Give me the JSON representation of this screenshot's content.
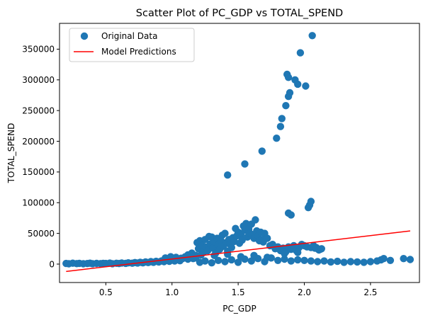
{
  "chart_data": {
    "type": "scatter",
    "title": "Scatter Plot of PC_GDP vs TOTAL_SPEND",
    "xlabel": "PC_GDP",
    "ylabel": "TOTAL_SPEND",
    "xlim": [
      0.15,
      2.87
    ],
    "ylim": [
      -30000,
      392000
    ],
    "xticks": [
      0.5,
      1.0,
      1.5,
      2.0,
      2.5
    ],
    "xtick_labels": [
      "0.5",
      "1.0",
      "1.5",
      "2.0",
      "2.5"
    ],
    "yticks": [
      0,
      50000,
      100000,
      150000,
      200000,
      250000,
      300000,
      350000
    ],
    "ytick_labels": [
      "0",
      "50000",
      "100000",
      "150000",
      "200000",
      "250000",
      "300000",
      "350000"
    ],
    "grid": false,
    "legend_position": "top-left",
    "series": [
      {
        "name": "Original Data",
        "kind": "scatter",
        "color": "#1f77b4",
        "points": [
          [
            0.2,
            1000
          ],
          [
            0.22,
            500
          ],
          [
            0.25,
            1500
          ],
          [
            0.28,
            800
          ],
          [
            0.3,
            1200
          ],
          [
            0.33,
            600
          ],
          [
            0.36,
            900
          ],
          [
            0.38,
            1500
          ],
          [
            0.4,
            700
          ],
          [
            0.43,
            1100
          ],
          [
            0.46,
            800
          ],
          [
            0.48,
            1300
          ],
          [
            0.5,
            1000
          ],
          [
            0.53,
            1600
          ],
          [
            0.55,
            700
          ],
          [
            0.58,
            1400
          ],
          [
            0.6,
            900
          ],
          [
            0.62,
            1800
          ],
          [
            0.65,
            1200
          ],
          [
            0.67,
            2000
          ],
          [
            0.7,
            1500
          ],
          [
            0.72,
            2500
          ],
          [
            0.74,
            1800
          ],
          [
            0.76,
            3000
          ],
          [
            0.78,
            2000
          ],
          [
            0.8,
            3500
          ],
          [
            0.82,
            2500
          ],
          [
            0.84,
            4000
          ],
          [
            0.86,
            3000
          ],
          [
            0.88,
            4500
          ],
          [
            0.9,
            3500
          ],
          [
            0.92,
            5000
          ],
          [
            0.94,
            4000
          ],
          [
            0.96,
            6000
          ],
          [
            0.98,
            4500
          ],
          [
            1.0,
            7000
          ],
          [
            1.02,
            5000
          ],
          [
            1.04,
            8000
          ],
          [
            1.06,
            5500
          ],
          [
            1.08,
            9000
          ],
          [
            0.95,
            10000
          ],
          [
            0.99,
            12000
          ],
          [
            1.03,
            11000
          ],
          [
            1.07,
            9500
          ],
          [
            1.1,
            12000
          ],
          [
            1.12,
            8000
          ],
          [
            1.14,
            13000
          ],
          [
            1.16,
            9000
          ],
          [
            1.18,
            14000
          ],
          [
            1.19,
            35000
          ],
          [
            1.2,
            25000
          ],
          [
            1.21,
            38000
          ],
          [
            1.22,
            15000
          ],
          [
            1.23,
            30000
          ],
          [
            1.24,
            20000
          ],
          [
            1.25,
            40000
          ],
          [
            1.26,
            28000
          ],
          [
            1.27,
            22000
          ],
          [
            1.28,
            45000
          ],
          [
            1.29,
            33000
          ],
          [
            1.3,
            44000
          ],
          [
            1.31,
            26000
          ],
          [
            1.32,
            36000
          ],
          [
            1.33,
            18000
          ],
          [
            1.34,
            42000
          ],
          [
            1.35,
            31000
          ],
          [
            1.36,
            24000
          ],
          [
            1.37,
            38000
          ],
          [
            1.38,
            47000
          ],
          [
            1.39,
            29000
          ],
          [
            1.4,
            50000
          ],
          [
            1.41,
            35000
          ],
          [
            1.42,
            21000
          ],
          [
            1.43,
            40000
          ],
          [
            1.44,
            32000
          ],
          [
            1.45,
            27000
          ],
          [
            1.46,
            43000
          ],
          [
            1.47,
            37000
          ],
          [
            1.48,
            58000
          ],
          [
            1.49,
            46000
          ],
          [
            1.5,
            52000
          ],
          [
            1.51,
            34000
          ],
          [
            1.52,
            48000
          ],
          [
            1.53,
            39000
          ],
          [
            1.54,
            62000
          ],
          [
            1.55,
            55000
          ],
          [
            1.56,
            66000
          ],
          [
            1.57,
            44000
          ],
          [
            1.58,
            57000
          ],
          [
            1.59,
            50000
          ],
          [
            1.6,
            65000
          ],
          [
            1.61,
            48000
          ],
          [
            1.62,
            42000
          ],
          [
            1.63,
            72000
          ],
          [
            1.64,
            54000
          ],
          [
            1.65,
            46000
          ],
          [
            1.66,
            38000
          ],
          [
            1.67,
            52000
          ],
          [
            1.68,
            40000
          ],
          [
            1.69,
            36000
          ],
          [
            1.7,
            50000
          ],
          [
            1.72,
            42000
          ],
          [
            1.74,
            30000
          ],
          [
            1.76,
            32000
          ],
          [
            1.78,
            25000
          ],
          [
            1.8,
            28000
          ],
          [
            1.82,
            22000
          ],
          [
            1.84,
            26000
          ],
          [
            1.86,
            20000
          ],
          [
            1.88,
            28000
          ],
          [
            1.9,
            24000
          ],
          [
            1.92,
            30000
          ],
          [
            1.94,
            22000
          ],
          [
            1.96,
            27000
          ],
          [
            1.98,
            32000
          ],
          [
            2.0,
            30000
          ],
          [
            2.02,
            28000
          ],
          [
            2.05,
            27000
          ],
          [
            2.08,
            26000
          ],
          [
            2.1,
            25000
          ],
          [
            2.12,
            24000
          ],
          [
            1.21,
            3000
          ],
          [
            1.25,
            5000
          ],
          [
            1.3,
            2000
          ],
          [
            1.35,
            6000
          ],
          [
            1.4,
            4000
          ],
          [
            1.45,
            7000
          ],
          [
            1.5,
            3000
          ],
          [
            1.55,
            8000
          ],
          [
            1.6,
            5000
          ],
          [
            1.65,
            9000
          ],
          [
            1.7,
            4000
          ],
          [
            1.75,
            10000
          ],
          [
            1.8,
            6000
          ],
          [
            1.85,
            8000
          ],
          [
            1.9,
            5000
          ],
          [
            1.95,
            7000
          ],
          [
            2.0,
            6000
          ],
          [
            2.05,
            5000
          ],
          [
            2.1,
            4000
          ],
          [
            2.15,
            5000
          ],
          [
            2.2,
            3500
          ],
          [
            2.25,
            4500
          ],
          [
            2.3,
            3000
          ],
          [
            2.35,
            4000
          ],
          [
            2.4,
            3500
          ],
          [
            2.45,
            3000
          ],
          [
            2.5,
            4000
          ],
          [
            2.55,
            5000
          ],
          [
            2.58,
            7000
          ],
          [
            2.6,
            9000
          ],
          [
            2.65,
            6000
          ],
          [
            2.75,
            9000
          ],
          [
            2.8,
            7500
          ],
          [
            1.12,
            15000
          ],
          [
            1.15,
            18000
          ],
          [
            1.18,
            10000
          ],
          [
            1.32,
            14000
          ],
          [
            1.42,
            16000
          ],
          [
            1.52,
            12000
          ],
          [
            1.62,
            14000
          ],
          [
            1.72,
            11000
          ],
          [
            1.85,
            17000
          ],
          [
            1.95,
            19000
          ],
          [
            1.42,
            145000
          ],
          [
            1.55,
            163000
          ],
          [
            1.68,
            184000
          ],
          [
            1.79,
            205000
          ],
          [
            1.82,
            224000
          ],
          [
            1.83,
            237000
          ],
          [
            1.86,
            258000
          ],
          [
            1.88,
            273000
          ],
          [
            1.89,
            279000
          ],
          [
            1.87,
            309000
          ],
          [
            1.88,
            304000
          ],
          [
            1.93,
            300000
          ],
          [
            1.95,
            293000
          ],
          [
            2.01,
            290000
          ],
          [
            1.97,
            344000
          ],
          [
            2.06,
            372000
          ],
          [
            1.88,
            83000
          ],
          [
            1.9,
            80000
          ],
          [
            2.03,
            92000
          ],
          [
            2.04,
            96000
          ],
          [
            2.05,
            102000
          ],
          [
            2.07,
            30000
          ],
          [
            2.09,
            27000
          ],
          [
            2.11,
            23000
          ],
          [
            2.13,
            25000
          ]
        ]
      },
      {
        "name": "Model Predictions",
        "kind": "line",
        "color": "#ff0000",
        "points": [
          [
            0.2,
            -12000
          ],
          [
            2.8,
            54000
          ]
        ]
      }
    ]
  }
}
